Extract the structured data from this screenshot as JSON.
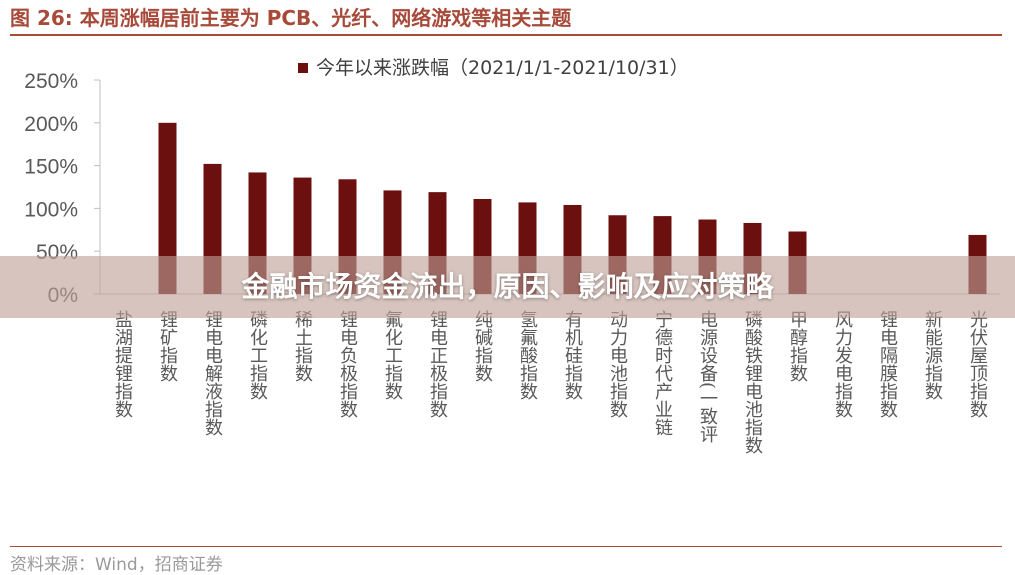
{
  "figure": {
    "title": "图 26:  本周涨幅居前主要为 PCB、光纤、网络游戏等相关主题",
    "source": "资料来源：Wind，招商证券"
  },
  "banner": {
    "text": "金融市场资金流出，原因、影响及应对策略"
  },
  "colors": {
    "bar": "#6b0f0f",
    "title": "#a84a3a",
    "axis_text": "#595959"
  },
  "chart_data": {
    "type": "bar",
    "legend_position": "top-center",
    "grid": false,
    "ylim": [
      0,
      250
    ],
    "yticks": [
      "250%",
      "200%",
      "150%",
      "100%",
      "50%",
      "0%"
    ],
    "series": [
      {
        "name": "今年以来涨跌幅（2021/1/1-2021/10/31）",
        "values": [
          0,
          200,
          152,
          142,
          136,
          134,
          121,
          119,
          111,
          107,
          104,
          92,
          91,
          87,
          83,
          73,
          0,
          0,
          0,
          69
        ]
      }
    ],
    "categories": [
      "盐湖提锂指数",
      "锂矿指数",
      "锂电电解液指数",
      "磷化工指数",
      "稀土指数",
      "锂电负极指数",
      "氟化工指数",
      "锂电正极指数",
      "纯碱指数",
      "氢氟酸指数",
      "有机硅指数",
      "动力电池指数",
      "宁德时代产业链",
      "电源设备(一致评",
      "磷酸铁锂电池指数",
      "甲醇指数",
      "风力发电指数",
      "锂电隔膜指数",
      "新能源指数",
      "光伏屋顶指数"
    ]
  }
}
